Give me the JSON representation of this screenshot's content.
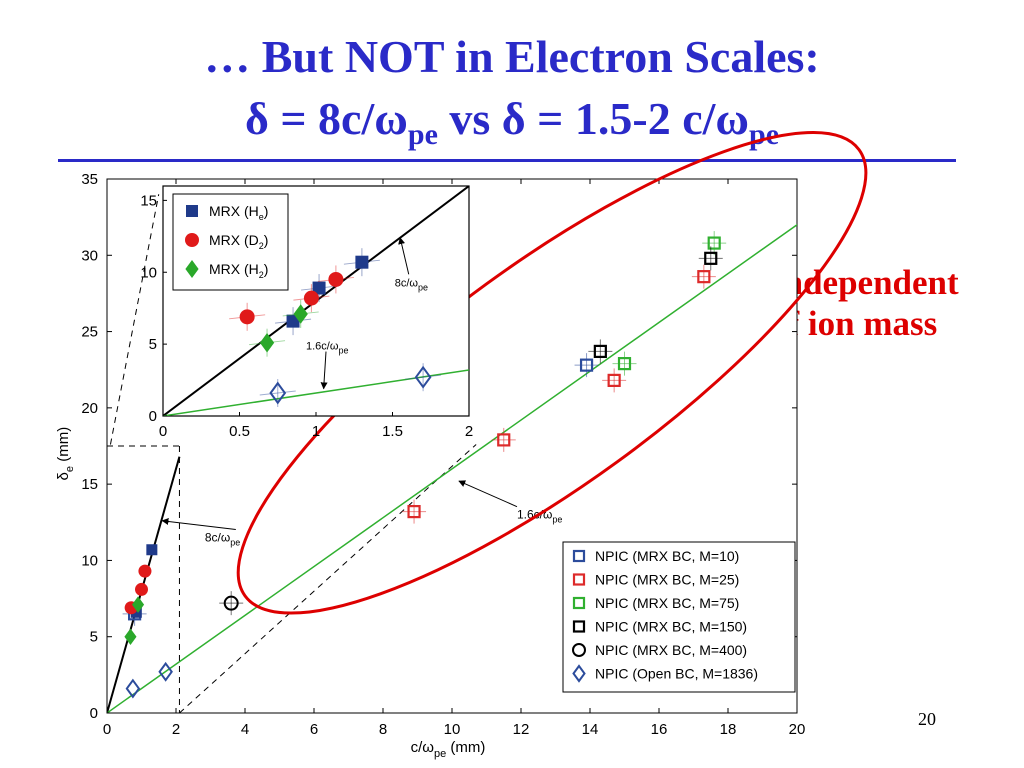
{
  "slide": {
    "title_line1": "… But NOT in Electron Scales:",
    "title_line2_parts": [
      "δ = 8c/ω",
      "pe",
      " vs δ = 1.5-2 c/ω",
      "pe"
    ],
    "side_note": [
      "Independent",
      "of ion mass"
    ],
    "slide_number": "20"
  },
  "colors": {
    "title": "#2a2ac8",
    "side_note": "#dd0000",
    "line_8c": "#000000",
    "line_1_6c": "#30b030",
    "npic_m10": "#2c4c9c",
    "npic_m25": "#dd2a2a",
    "npic_m75": "#30b030",
    "npic_m150": "#000000",
    "npic_m400": "#000000",
    "npic_open": "#2c4c9c",
    "mrx_he": "#1f3a8a",
    "mrx_d2": "#e01a1a",
    "mrx_h2": "#2aa82a",
    "ellipse": "#dd0000"
  },
  "chart_data": [
    {
      "type": "scatter",
      "xlabel": "c/ω",
      "xlabel_sub": "pe",
      "xlabel_unit": " (mm)",
      "ylabel": "δ",
      "ylabel_sub": "e",
      "ylabel_unit": " (mm)",
      "xlim": [
        0,
        20
      ],
      "ylim": [
        0,
        35
      ],
      "x_ticks": [
        0,
        2,
        4,
        6,
        8,
        10,
        12,
        14,
        16,
        18,
        20
      ],
      "y_ticks": [
        0,
        5,
        10,
        15,
        20,
        25,
        30,
        35
      ],
      "lines": [
        {
          "name": "8c/ω",
          "name_sub": "pe",
          "slope": 8,
          "x_range": [
            0,
            2.1
          ],
          "label_x": 3.85,
          "label_y": 11.5,
          "arrow_to": [
            1.6,
            12.6
          ]
        },
        {
          "name": "1.6c/ω",
          "name_sub": "pe",
          "slope": 1.6,
          "x_range": [
            0,
            20.3
          ],
          "label_x": 12.0,
          "label_y": 13.0,
          "arrow_to": [
            10.2,
            15.2
          ]
        }
      ],
      "series": [
        {
          "name": "NPIC (MRX BC, M=10)",
          "marker": "square",
          "color_key": "npic_m10",
          "points": [
            [
              0.8,
              6.5
            ],
            [
              13.9,
              22.8
            ]
          ]
        },
        {
          "name": "NPIC (MRX BC, M=25)",
          "marker": "square",
          "color_key": "npic_m25",
          "points": [
            [
              8.9,
              13.2
            ],
            [
              11.5,
              17.9
            ],
            [
              14.7,
              21.8
            ],
            [
              17.3,
              28.6
            ]
          ]
        },
        {
          "name": "NPIC (MRX BC, M=75)",
          "marker": "square",
          "color_key": "npic_m75",
          "points": [
            [
              15.0,
              22.9
            ],
            [
              17.6,
              30.8
            ]
          ]
        },
        {
          "name": "NPIC (MRX BC, M=150)",
          "marker": "square",
          "color_key": "npic_m150",
          "points": [
            [
              14.3,
              23.7
            ],
            [
              17.5,
              29.8
            ]
          ]
        },
        {
          "name": "NPIC (MRX BC, M=400)",
          "marker": "circle",
          "color_key": "npic_m400",
          "points": [
            [
              3.6,
              7.2
            ]
          ]
        },
        {
          "name": "NPIC (Open BC, M=1836)",
          "marker": "diamond",
          "color_key": "npic_open",
          "points": [
            [
              0.75,
              1.6
            ],
            [
              1.7,
              2.7
            ]
          ]
        },
        {
          "name": "MRX (H_e)",
          "marker": "filled-square",
          "color_key": "mrx_he",
          "points": [
            [
              0.85,
              6.6
            ],
            [
              1.3,
              10.7
            ]
          ]
        },
        {
          "name": "MRX (D_2)",
          "marker": "filled-circle",
          "color_key": "mrx_d2",
          "points": [
            [
              0.7,
              6.9
            ],
            [
              1.0,
              8.1
            ],
            [
              1.1,
              9.3
            ]
          ]
        },
        {
          "name": "MRX (H_2)",
          "marker": "filled-diamond",
          "color_key": "mrx_h2",
          "points": [
            [
              0.68,
              5.0
            ],
            [
              0.9,
              7.1
            ]
          ]
        }
      ],
      "legend": {
        "placement": "bottom-right",
        "entries": [
          "NPIC (MRX BC, M=10)",
          "NPIC (MRX BC, M=25)",
          "NPIC (MRX BC, M=75)",
          "NPIC (MRX BC, M=150)",
          "NPIC (MRX BC, M=400)",
          "NPIC (Open BC, M=1836)"
        ]
      },
      "annotation_ellipse": {
        "center": [
          12.9,
          22.3
        ],
        "rx_data": 11.0,
        "ry_data": 3.2,
        "angle_deg": -36
      }
    },
    {
      "type": "scatter",
      "role": "inset zoom of 0–2 mm region",
      "xlim": [
        0,
        2
      ],
      "ylim": [
        0,
        16
      ],
      "x_ticks": [
        0,
        0.5,
        1,
        1.5,
        2
      ],
      "x_tick_labels": [
        "0",
        "0.5",
        "1",
        "1.5",
        "2"
      ],
      "y_ticks": [
        0,
        5,
        10,
        15
      ],
      "lines": [
        {
          "name": "8c/ω",
          "name_sub": "pe",
          "slope": 8,
          "x_range": [
            0,
            2
          ],
          "label_x": 1.58,
          "label_y": 9.3,
          "arrow_to": [
            1.55,
            12.4
          ]
        },
        {
          "name": "1.6c/ω",
          "name_sub": "pe",
          "slope": 1.6,
          "x_range": [
            0,
            2
          ],
          "label_x": 1.0,
          "label_y": 4.9,
          "arrow_to": [
            1.05,
            1.9
          ]
        }
      ],
      "series": [
        {
          "name": "MRX (H",
          "name_sub": "e",
          "marker": "filled-square",
          "color_key": "mrx_he",
          "points": [
            [
              0.85,
              6.6
            ],
            [
              1.3,
              10.7
            ],
            [
              1.02,
              8.9
            ]
          ]
        },
        {
          "name": "MRX (D",
          "name_sub": "2",
          "marker": "filled-circle",
          "color_key": "mrx_d2",
          "points": [
            [
              0.55,
              6.9
            ],
            [
              0.97,
              8.2
            ],
            [
              1.13,
              9.5
            ]
          ]
        },
        {
          "name": "MRX (H",
          "name_sub": "2",
          "marker": "filled-diamond",
          "color_key": "mrx_h2",
          "points": [
            [
              0.68,
              5.1
            ],
            [
              0.9,
              7.1
            ]
          ]
        },
        {
          "name": "NPIC (Open BC, M=1836)",
          "marker": "diamond",
          "color_key": "npic_open",
          "points": [
            [
              0.75,
              1.6
            ],
            [
              1.7,
              2.7
            ]
          ],
          "in_legend": false
        }
      ],
      "legend": {
        "placement": "top-left"
      }
    }
  ]
}
